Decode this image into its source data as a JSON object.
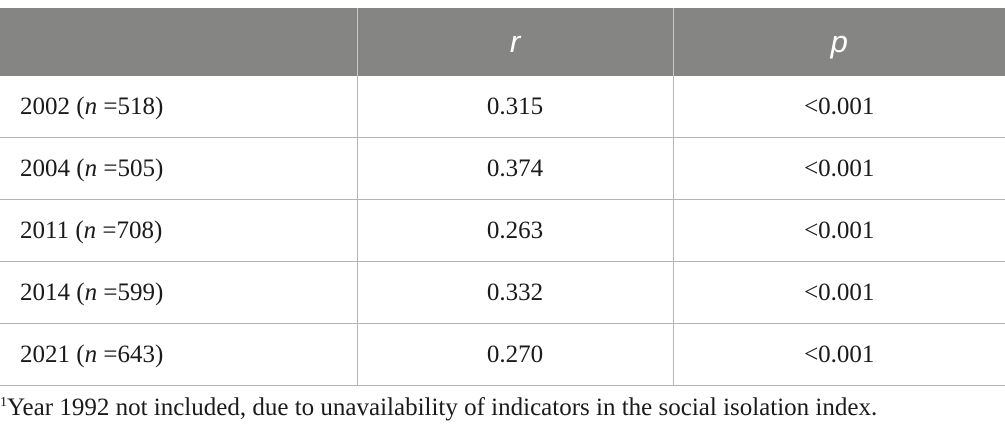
{
  "table": {
    "headers": [
      "",
      "r",
      "p"
    ],
    "rows": [
      {
        "year": "2002",
        "n": "518",
        "r": "0.315",
        "p": "<0.001"
      },
      {
        "year": "2004",
        "n": "505",
        "r": "0.374",
        "p": "<0.001"
      },
      {
        "year": "2011",
        "n": "708",
        "r": "0.263",
        "p": "<0.001"
      },
      {
        "year": "2014",
        "n": "599",
        "r": "0.332",
        "p": "<0.001"
      },
      {
        "year": "2021",
        "n": "643",
        "r": "0.270",
        "p": "<0.001"
      }
    ],
    "n_symbol": "n",
    "equals": "="
  },
  "footnote": {
    "marker": "1",
    "text": "Year 1992 not included, due to unavailability of indicators in the social isolation index."
  }
}
